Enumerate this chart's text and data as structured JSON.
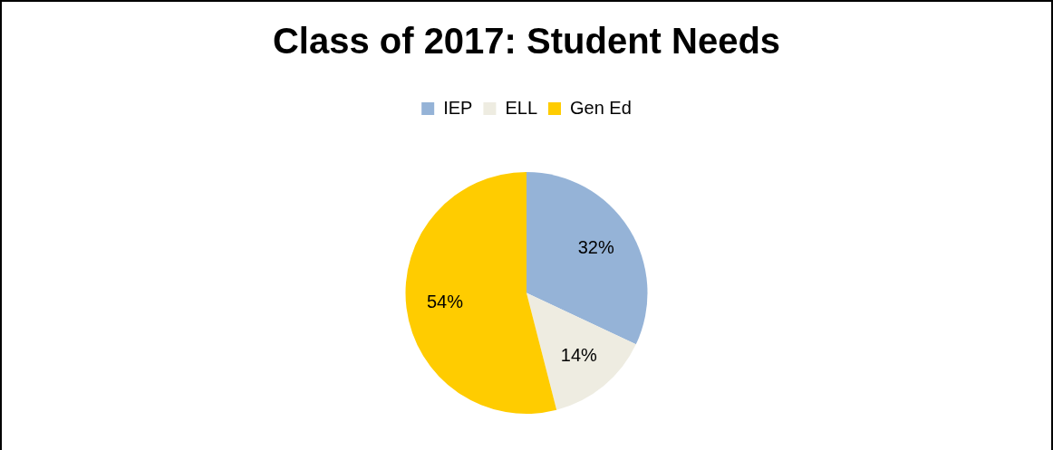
{
  "chart_data": {
    "type": "pie",
    "title": "Class of 2017: Student Needs",
    "categories": [
      "IEP",
      "ELL",
      "Gen Ed"
    ],
    "values": [
      32,
      14,
      54
    ],
    "colors": [
      "#95b3d7",
      "#eeece1",
      "#ffcc00"
    ],
    "value_labels": [
      "32%",
      "14%",
      "54%"
    ],
    "legend": "top"
  }
}
